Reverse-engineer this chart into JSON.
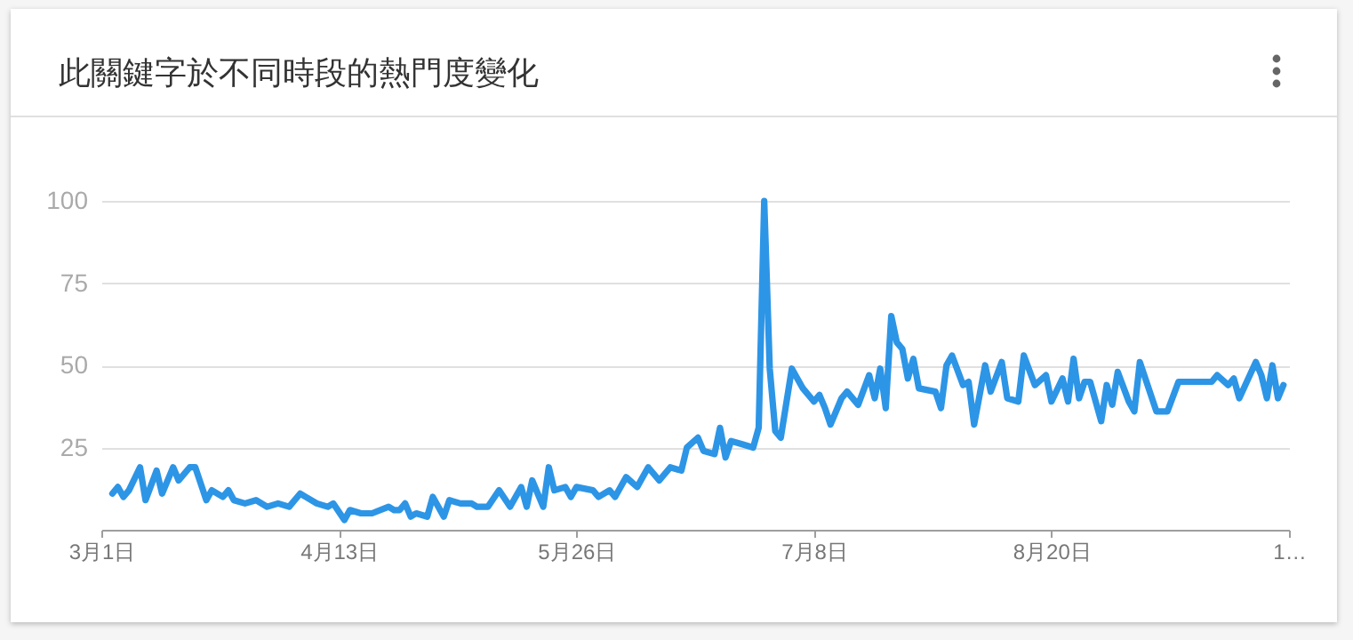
{
  "chart_data": {
    "type": "line",
    "title": "此關鍵字於不同時段的熱門度變化",
    "x": [
      "--03-03",
      "--03-04",
      "--03-05",
      "--03-06",
      "--03-08",
      "--03-09",
      "--03-11",
      "--03-12",
      "--03-14",
      "--03-15",
      "--03-17",
      "--03-18",
      "--03-20",
      "--03-21",
      "--03-23",
      "--03-24",
      "--03-25",
      "--03-27",
      "--03-29",
      "--03-31",
      "--04-02",
      "--04-04",
      "--04-06",
      "--04-07",
      "--04-09",
      "--04-11",
      "--04-12",
      "--04-14",
      "--04-15",
      "--04-17",
      "--04-19",
      "--04-22",
      "--04-23",
      "--04-24",
      "--04-25",
      "--04-26",
      "--04-27",
      "--04-29",
      "--04-30",
      "--05-02",
      "--05-03",
      "--05-05",
      "--05-07",
      "--05-08",
      "--05-10",
      "--05-12",
      "--05-14",
      "--05-16",
      "--05-17",
      "--05-18",
      "--05-20",
      "--05-21",
      "--05-22",
      "--05-24",
      "--05-25",
      "--05-26",
      "--05-29",
      "--05-30",
      "--06-01",
      "--06-02",
      "--06-04",
      "--06-06",
      "--06-07",
      "--06-08",
      "--06-10",
      "--06-12",
      "--06-14",
      "--06-15",
      "--06-17",
      "--06-18",
      "--06-20",
      "--06-21",
      "--06-22",
      "--06-23",
      "--06-25",
      "--06-27",
      "--06-28",
      "--06-29",
      "--06-30",
      "--07-01",
      "--07-02",
      "--07-04",
      "--07-06",
      "--07-08",
      "--07-09",
      "--07-10",
      "--07-11",
      "--07-13",
      "--07-14",
      "--07-16",
      "--07-18",
      "--07-19",
      "--07-20",
      "--07-21",
      "--07-22",
      "--07-23",
      "--07-24",
      "--07-25",
      "--07-26",
      "--07-27",
      "--07-30",
      "--07-31",
      "--08-01",
      "--08-02",
      "--08-04",
      "--08-05",
      "--08-06",
      "--08-08",
      "--08-09",
      "--08-11",
      "--08-12",
      "--08-14",
      "--08-15",
      "--08-17",
      "--08-19",
      "--08-20",
      "--08-22",
      "--08-23",
      "--08-24",
      "--08-25",
      "--08-26",
      "--08-27",
      "--08-29",
      "--08-30",
      "--08-31",
      "--09-01",
      "--09-03",
      "--09-04",
      "--09-05",
      "--09-08",
      "--09-10",
      "--09-12",
      "--09-18",
      "--09-19",
      "--09-21",
      "--09-22",
      "--09-23",
      "--09-26",
      "--09-27",
      "--09-28",
      "--09-29",
      "--09-30",
      "--10-01"
    ],
    "series": [
      {
        "color": "#2d95e6",
        "values": [
          11,
          13,
          10,
          12,
          19,
          9,
          18,
          11,
          19,
          15,
          19,
          19,
          9,
          12,
          10,
          12,
          9,
          8,
          9,
          7,
          8,
          7,
          11,
          10,
          8,
          7,
          8,
          3,
          6,
          5,
          5,
          7,
          6,
          6,
          8,
          4,
          5,
          4,
          10,
          4,
          9,
          8,
          8,
          7,
          7,
          12,
          7,
          13,
          7,
          15,
          7,
          19,
          12,
          13,
          10,
          13,
          12,
          10,
          12,
          10,
          16,
          13,
          16,
          19,
          15,
          19,
          18,
          25,
          28,
          24,
          23,
          31,
          22,
          27,
          26,
          25,
          31,
          100,
          49,
          30,
          28,
          49,
          43,
          39,
          41,
          37,
          32,
          40,
          42,
          38,
          47,
          40,
          49,
          37,
          65,
          57,
          55,
          46,
          52,
          43,
          42,
          37,
          50,
          53,
          44,
          45,
          32,
          50,
          42,
          51,
          40,
          39,
          53,
          44,
          47,
          39,
          46,
          39,
          52,
          40,
          45,
          45,
          33,
          44,
          38,
          48,
          39,
          36,
          51,
          36,
          36,
          45,
          45,
          47,
          44,
          46,
          40,
          51,
          47,
          40,
          50,
          40,
          44
        ]
      }
    ],
    "xlim": [
      "--03-01",
      "--10-02"
    ],
    "xticks": [
      {
        "value": "--03-01",
        "label": "3月1日"
      },
      {
        "value": "--04-13",
        "label": "4月13日"
      },
      {
        "value": "--05-26",
        "label": "5月26日"
      },
      {
        "value": "--07-08",
        "label": "7月8日"
      },
      {
        "value": "--08-20",
        "label": "8月20日"
      },
      {
        "value": "--10-02",
        "label": "1…"
      }
    ],
    "ylim": [
      0,
      100
    ],
    "yticks": [
      25,
      50,
      75,
      100
    ],
    "grid": "y"
  }
}
